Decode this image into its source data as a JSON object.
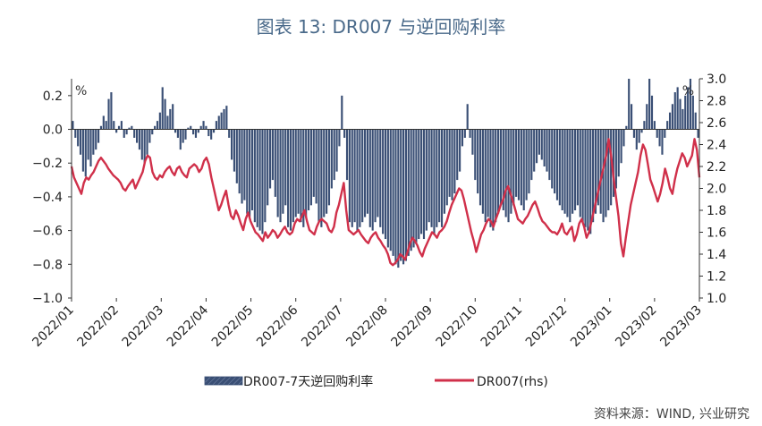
{
  "title": "图表 13: DR007 与逆回购利率",
  "source": "资料来源：WIND, 兴业研究",
  "chart_data": {
    "type": "bar+line",
    "title": "图表 13: DR007 与逆回购利率",
    "x_tick_labels": [
      "2022/01",
      "2022/02",
      "2022/03",
      "2022/04",
      "2022/05",
      "2022/06",
      "2022/07",
      "2022/08",
      "2022/09",
      "2022/10",
      "2022/11",
      "2022/12",
      "2023/01",
      "2023/02",
      "2023/03"
    ],
    "y_left": {
      "unit": "%",
      "ylim": [
        -1.0,
        0.3
      ],
      "ticks": [
        0.2,
        0.0,
        -0.2,
        -0.4,
        -0.6,
        -0.8,
        -1.0
      ],
      "tick_labels": [
        "0.2",
        "0.0",
        "−0.2",
        "−0.4",
        "−0.6",
        "−0.8",
        "−1.0"
      ]
    },
    "y_right": {
      "unit": "%",
      "ylim": [
        1.0,
        3.0
      ],
      "ticks": [
        3.0,
        2.8,
        2.6,
        2.4,
        2.2,
        2.0,
        1.8,
        1.6,
        1.4,
        1.2,
        1.0
      ],
      "tick_labels": [
        "3.0",
        "2.8",
        "2.6",
        "2.4",
        "2.2",
        "2.0",
        "1.8",
        "1.6",
        "1.4",
        "1.2",
        "1.0"
      ]
    },
    "legend": [
      "DR007-7天逆回购利率",
      "DR007(rhs)"
    ],
    "legend_position": "bottom",
    "grid": false,
    "series": [
      {
        "name": "DR007-7天逆回购利率",
        "type": "bar",
        "axis": "left",
        "values": [
          0.05,
          -0.05,
          -0.1,
          -0.15,
          -0.25,
          -0.28,
          -0.18,
          -0.22,
          -0.15,
          -0.12,
          -0.08,
          0.02,
          0.08,
          0.05,
          0.18,
          0.22,
          0.05,
          -0.02,
          0.02,
          0.05,
          -0.05,
          -0.03,
          0.01,
          0.02,
          -0.05,
          -0.08,
          -0.12,
          -0.18,
          -0.2,
          -0.15,
          -0.08,
          -0.03,
          0.02,
          0.05,
          0.1,
          0.25,
          0.18,
          0.08,
          0.12,
          0.15,
          -0.02,
          -0.05,
          -0.12,
          -0.08,
          -0.06,
          0.01,
          0.02,
          -0.03,
          -0.05,
          -0.02,
          0.02,
          0.05,
          0.02,
          -0.04,
          -0.06,
          -0.02,
          0.05,
          0.08,
          0.1,
          0.12,
          0.14,
          -0.05,
          -0.18,
          -0.25,
          -0.32,
          -0.38,
          -0.44,
          -0.42,
          -0.5,
          -0.52,
          -0.48,
          -0.55,
          -0.58,
          -0.6,
          -0.62,
          -0.55,
          -0.45,
          -0.35,
          -0.3,
          -0.4,
          -0.52,
          -0.55,
          -0.5,
          -0.45,
          -0.58,
          -0.6,
          -0.55,
          -0.52,
          -0.5,
          -0.55,
          -0.58,
          -0.52,
          -0.48,
          -0.45,
          -0.4,
          -0.44,
          -0.55,
          -0.58,
          -0.52,
          -0.5,
          -0.45,
          -0.35,
          -0.3,
          -0.25,
          -0.1,
          0.2,
          -0.05,
          -0.3,
          -0.55,
          -0.58,
          -0.55,
          -0.6,
          -0.58,
          -0.55,
          -0.52,
          -0.5,
          -0.58,
          -0.6,
          -0.55,
          -0.52,
          -0.58,
          -0.62,
          -0.65,
          -0.7,
          -0.72,
          -0.75,
          -0.8,
          -0.82,
          -0.78,
          -0.8,
          -0.78,
          -0.75,
          -0.72,
          -0.7,
          -0.68,
          -0.65,
          -0.62,
          -0.65,
          -0.6,
          -0.55,
          -0.58,
          -0.62,
          -0.58,
          -0.55,
          -0.58,
          -0.5,
          -0.45,
          -0.4,
          -0.42,
          -0.38,
          -0.3,
          -0.25,
          -0.1,
          -0.05,
          0.15,
          -0.05,
          -0.15,
          -0.3,
          -0.38,
          -0.45,
          -0.5,
          -0.55,
          -0.52,
          -0.58,
          -0.6,
          -0.55,
          -0.5,
          -0.45,
          -0.48,
          -0.52,
          -0.55,
          -0.5,
          -0.45,
          -0.4,
          -0.42,
          -0.45,
          -0.48,
          -0.42,
          -0.38,
          -0.3,
          -0.25,
          -0.2,
          -0.15,
          -0.18,
          -0.22,
          -0.25,
          -0.3,
          -0.35,
          -0.38,
          -0.42,
          -0.45,
          -0.48,
          -0.5,
          -0.52,
          -0.55,
          -0.5,
          -0.48,
          -0.45,
          -0.52,
          -0.55,
          -0.58,
          -0.6,
          -0.62,
          -0.55,
          -0.5,
          -0.45,
          -0.5,
          -0.55,
          -0.52,
          -0.48,
          -0.45,
          -0.4,
          -0.35,
          -0.28,
          -0.2,
          -0.1,
          0.02,
          0.3,
          0.15,
          -0.05,
          -0.12,
          -0.08,
          -0.02,
          0.05,
          0.15,
          0.3,
          0.2,
          0.05,
          -0.05,
          -0.1,
          -0.15,
          -0.05,
          0.05,
          0.1,
          0.15,
          0.22,
          0.25,
          0.18,
          0.12,
          0.2,
          0.25,
          0.3,
          0.2,
          0.1,
          -0.05
        ]
      },
      {
        "name": "DR007(rhs)",
        "type": "line",
        "axis": "right",
        "values": [
          2.2,
          2.1,
          2.05,
          2.0,
          1.95,
          2.05,
          2.1,
          2.08,
          2.12,
          2.15,
          2.2,
          2.25,
          2.28,
          2.25,
          2.22,
          2.18,
          2.15,
          2.12,
          2.1,
          2.08,
          2.05,
          2.0,
          1.98,
          2.02,
          2.05,
          2.08,
          2.0,
          2.05,
          2.1,
          2.15,
          2.25,
          2.3,
          2.28,
          2.15,
          2.1,
          2.08,
          2.12,
          2.1,
          2.15,
          2.18,
          2.2,
          2.15,
          2.12,
          2.18,
          2.2,
          2.15,
          2.12,
          2.1,
          2.18,
          2.2,
          2.22,
          2.2,
          2.15,
          2.18,
          2.25,
          2.28,
          2.22,
          2.1,
          2.0,
          1.9,
          1.8,
          1.85,
          1.92,
          1.98,
          1.85,
          1.75,
          1.72,
          1.8,
          1.75,
          1.68,
          1.62,
          1.72,
          1.78,
          1.7,
          1.65,
          1.6,
          1.58,
          1.55,
          1.52,
          1.6,
          1.55,
          1.58,
          1.62,
          1.6,
          1.55,
          1.58,
          1.62,
          1.65,
          1.6,
          1.58,
          1.6,
          1.68,
          1.72,
          1.7,
          1.75,
          1.8,
          1.7,
          1.62,
          1.6,
          1.58,
          1.65,
          1.7,
          1.72,
          1.7,
          1.68,
          1.62,
          1.6,
          1.65,
          1.78,
          1.85,
          1.95,
          2.05,
          1.8,
          1.62,
          1.6,
          1.58,
          1.6,
          1.62,
          1.58,
          1.55,
          1.52,
          1.5,
          1.55,
          1.58,
          1.6,
          1.55,
          1.52,
          1.48,
          1.45,
          1.4,
          1.32,
          1.3,
          1.32,
          1.35,
          1.4,
          1.38,
          1.35,
          1.42,
          1.5,
          1.55,
          1.52,
          1.48,
          1.42,
          1.38,
          1.45,
          1.5,
          1.55,
          1.6,
          1.58,
          1.55,
          1.6,
          1.62,
          1.65,
          1.7,
          1.78,
          1.85,
          1.9,
          1.95,
          2.0,
          1.98,
          1.9,
          1.8,
          1.7,
          1.6,
          1.52,
          1.42,
          1.5,
          1.58,
          1.62,
          1.68,
          1.72,
          1.7,
          1.65,
          1.72,
          1.78,
          1.85,
          1.9,
          1.98,
          2.02,
          1.95,
          1.88,
          1.8,
          1.72,
          1.7,
          1.68,
          1.72,
          1.75,
          1.8,
          1.85,
          1.88,
          1.82,
          1.75,
          1.7,
          1.68,
          1.65,
          1.62,
          1.6,
          1.6,
          1.58,
          1.62,
          1.68,
          1.6,
          1.58,
          1.62,
          1.65,
          1.52,
          1.58,
          1.68,
          1.72,
          1.65,
          1.55,
          1.6,
          1.7,
          1.8,
          1.9,
          2.0,
          2.1,
          2.2,
          2.3,
          2.45,
          2.3,
          2.1,
          1.92,
          1.75,
          1.5,
          1.38,
          1.55,
          1.7,
          1.85,
          1.95,
          2.05,
          2.15,
          2.3,
          2.4,
          2.35,
          2.22,
          2.08,
          2.02,
          1.95,
          1.88,
          1.95,
          2.05,
          2.18,
          2.1,
          2.0,
          1.95,
          2.08,
          2.18,
          2.25,
          2.32,
          2.28,
          2.2,
          2.25,
          2.3,
          2.45,
          2.35,
          2.1
        ]
      }
    ]
  }
}
